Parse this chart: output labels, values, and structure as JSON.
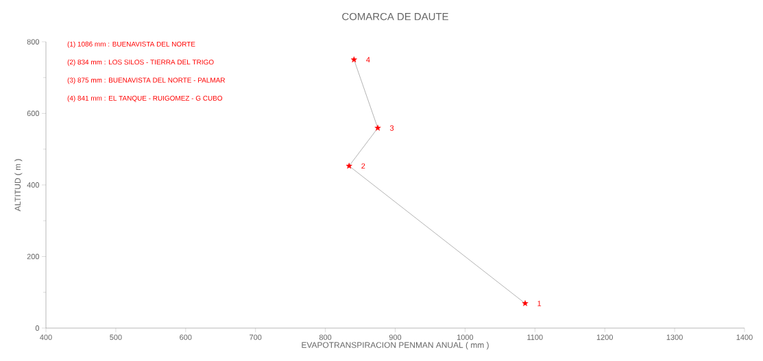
{
  "chart_data": {
    "type": "line",
    "title": "COMARCA DE DAUTE",
    "xlabel": "EVAPOTRANSPIRACION PENMAN ANUAL ( mm )",
    "ylabel": "ALTITUD ( m )",
    "x": [
      1086,
      834,
      875,
      841
    ],
    "series": [
      {
        "color": "#808080",
        "marker": "none",
        "values": [
          69,
          453,
          559,
          750
        ]
      },
      {
        "type": "scatter",
        "color": "#ff0000",
        "marker": "star",
        "values": [
          69,
          453,
          559,
          750
        ]
      }
    ],
    "xlim": [
      400,
      1400
    ],
    "ylim": [
      0,
      800
    ],
    "xticks": [
      400,
      500,
      600,
      700,
      800,
      900,
      1000,
      1100,
      1200,
      1300,
      1400
    ],
    "yticks": [
      0,
      200,
      400,
      600,
      800
    ],
    "annotations": [
      "(1) 1086 mm : BUENAVISTA DEL NORTE",
      "(2)  834 mm : LOS SILOS - TIERRA DEL TRIGO",
      "(3)  875 mm : BUENAVISTA DEL NORTE - PALMAR",
      "(4)  841 mm : EL TANQUE - RUIGOMEZ - G  CUBO",
      {
        "text": "1",
        "x": 1086,
        "y": 69
      },
      {
        "text": "2",
        "x": 834,
        "y": 453
      },
      {
        "text": "3",
        "x": 875,
        "y": 559
      },
      {
        "text": "4",
        "x": 841,
        "y": 750
      }
    ]
  }
}
